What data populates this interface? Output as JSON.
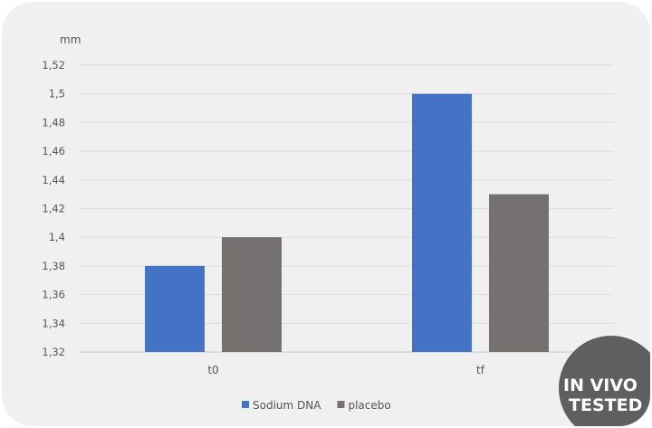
{
  "chart_data": {
    "type": "bar",
    "categories": [
      "t0",
      "tf"
    ],
    "series": [
      {
        "name": "Sodium DNA",
        "values": [
          1.38,
          1.5
        ],
        "color": "#4472c4"
      },
      {
        "name": "placebo",
        "values": [
          1.4,
          1.43
        ],
        "color": "#767171"
      }
    ],
    "title": "",
    "ylabel": "mm",
    "xlabel": "",
    "ylim": [
      1.32,
      1.52
    ],
    "yticks": [
      "1,32",
      "1,34",
      "1,36",
      "1,38",
      "1,4",
      "1,42",
      "1,44",
      "1,46",
      "1,48",
      "1,5",
      "1,52"
    ],
    "grid": true,
    "legend": "bottom"
  },
  "badge": {
    "line1": "IN VIVO",
    "line2": "TESTED",
    "color": "#5f5f5f"
  }
}
